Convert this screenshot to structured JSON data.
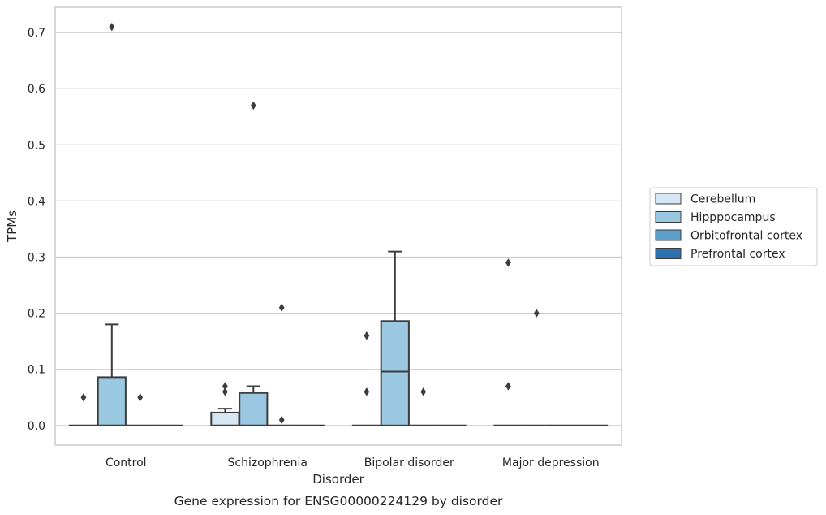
{
  "chart_data": {
    "type": "box",
    "caption": "Gene expression for ENSG00000224129 by disorder",
    "xlabel": "Disorder",
    "ylabel": "TPMs",
    "ylim": [
      -0.035,
      0.745
    ],
    "yticks": [
      "0.0",
      "0.1",
      "0.2",
      "0.3",
      "0.4",
      "0.5",
      "0.6",
      "0.7"
    ],
    "ytick_values": [
      0,
      0.1,
      0.2,
      0.3,
      0.4,
      0.5,
      0.6,
      0.7
    ],
    "grid": "horizontal",
    "legend_position": "right",
    "categories": [
      "Control",
      "Schizophrenia",
      "Bipolar disorder",
      "Major depression"
    ],
    "series": [
      {
        "name": "Cerebellum",
        "color": "#d6e6f4",
        "boxes": [
          {
            "q1": 0,
            "median": 0,
            "q3": 0,
            "whisker_low": 0,
            "whisker_high": 0,
            "outliers": [
              0.05
            ]
          },
          {
            "q1": 0,
            "median": 0,
            "q3": 0.023,
            "whisker_low": 0,
            "whisker_high": 0.03,
            "outliers": [
              0.06,
              0.07
            ]
          },
          {
            "q1": 0,
            "median": 0,
            "q3": 0,
            "whisker_low": 0,
            "whisker_high": 0,
            "outliers": [
              0.06,
              0.16
            ]
          },
          {
            "q1": 0,
            "median": 0,
            "q3": 0,
            "whisker_low": 0,
            "whisker_high": 0,
            "outliers": [
              0.07,
              0.29
            ]
          }
        ]
      },
      {
        "name": "Hipppocampus",
        "color": "#9ac8e0",
        "boxes": [
          {
            "q1": 0,
            "median": 0,
            "q3": 0.086,
            "whisker_low": 0,
            "whisker_high": 0.18,
            "outliers": [
              0.71
            ]
          },
          {
            "q1": 0,
            "median": 0,
            "q3": 0.058,
            "whisker_low": 0,
            "whisker_high": 0.07,
            "outliers": [
              0.57
            ]
          },
          {
            "q1": 0,
            "median": 0.096,
            "q3": 0.186,
            "whisker_low": 0,
            "whisker_high": 0.31,
            "outliers": []
          },
          {
            "q1": 0,
            "median": 0,
            "q3": 0,
            "whisker_low": 0,
            "whisker_high": 0,
            "outliers": [
              0.2
            ]
          }
        ]
      },
      {
        "name": "Orbitofrontal cortex",
        "color": "#5a9ec9",
        "boxes": [
          {
            "q1": 0,
            "median": 0,
            "q3": 0,
            "whisker_low": 0,
            "whisker_high": 0,
            "outliers": [
              0.05
            ]
          },
          {
            "q1": 0,
            "median": 0,
            "q3": 0,
            "whisker_low": 0,
            "whisker_high": 0,
            "outliers": [
              0.01,
              0.21
            ]
          },
          {
            "q1": 0,
            "median": 0,
            "q3": 0,
            "whisker_low": 0,
            "whisker_high": 0,
            "outliers": [
              0.06
            ]
          },
          {
            "q1": 0,
            "median": 0,
            "q3": 0,
            "whisker_low": 0,
            "whisker_high": 0,
            "outliers": []
          }
        ]
      },
      {
        "name": "Prefrontal cortex",
        "color": "#2c72b0",
        "boxes": [
          {
            "q1": 0,
            "median": 0,
            "q3": 0,
            "whisker_low": 0,
            "whisker_high": 0,
            "outliers": []
          },
          {
            "q1": 0,
            "median": 0,
            "q3": 0,
            "whisker_low": 0,
            "whisker_high": 0,
            "outliers": []
          },
          {
            "q1": 0,
            "median": 0,
            "q3": 0,
            "whisker_low": 0,
            "whisker_high": 0,
            "outliers": []
          },
          {
            "q1": 0,
            "median": 0,
            "q3": 0,
            "whisker_low": 0,
            "whisker_high": 0,
            "outliers": []
          }
        ]
      }
    ]
  }
}
